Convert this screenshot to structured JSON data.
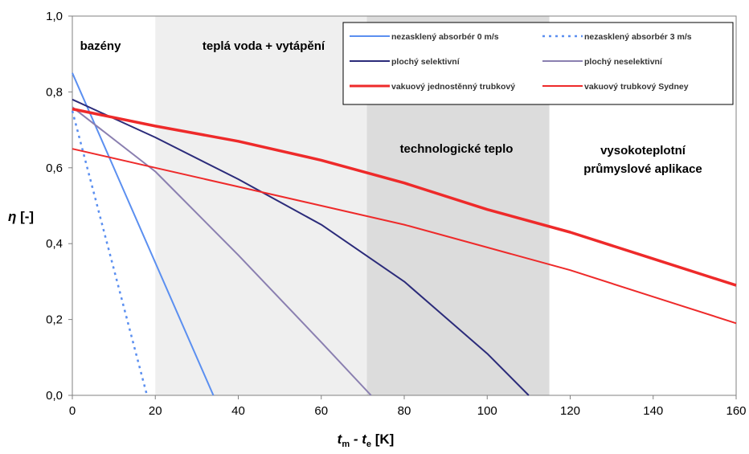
{
  "chart_data": {
    "type": "line",
    "xlabel_main": "t",
    "xlabel_sub1": "m",
    "xlabel_mid": " - t",
    "xlabel_sub2": "e",
    "xlabel_unit": " [K]",
    "ylabel_sym": "η",
    "ylabel_unit": " [-]",
    "xlim": [
      0,
      160
    ],
    "ylim": [
      0,
      1
    ],
    "x_ticks": [
      0,
      20,
      40,
      60,
      80,
      100,
      120,
      140,
      160
    ],
    "y_ticks": [
      "0,0",
      "0,2",
      "0,4",
      "0,6",
      "0,8",
      "1,0"
    ],
    "y_tick_values": [
      0,
      0.2,
      0.4,
      0.6,
      0.8,
      1.0
    ],
    "grid": false,
    "legend_position": "top-right",
    "regions": [
      {
        "label": "bazény",
        "x_from": 0,
        "x_to": 20,
        "shade": "#ffffff"
      },
      {
        "label": "teplá voda + vytápění",
        "x_from": 20,
        "x_to": 71,
        "shade": "#efefef"
      },
      {
        "label": "technologické teplo",
        "x_from": 71,
        "x_to": 115,
        "shade": "#dcdcdc"
      },
      {
        "label": "vysokoteplotní průmyslové aplikace",
        "label_line1": "vysokoteplotní",
        "label_line2": "průmyslové aplikace",
        "x_from": 115,
        "x_to": 160,
        "shade": "#ffffff"
      }
    ],
    "series": [
      {
        "name": "nezasklený absorbér 0 m/s",
        "color": "#5b8ff0",
        "dash": "none",
        "width": 2,
        "x": [
          0,
          34
        ],
        "y": [
          0.85,
          0.0
        ]
      },
      {
        "name": "nezasklený absorbér 3 m/s",
        "color": "#5b8ff0",
        "dash": "dotted",
        "width": 2.5,
        "x": [
          0,
          18
        ],
        "y": [
          0.75,
          0.0
        ]
      },
      {
        "name": "plochý selektivní",
        "color": "#2b2b7a",
        "dash": "none",
        "width": 2,
        "x": [
          0,
          20,
          40,
          60,
          80,
          100,
          110
        ],
        "y": [
          0.78,
          0.68,
          0.57,
          0.45,
          0.3,
          0.11,
          0.0
        ]
      },
      {
        "name": "plochý neselektivní",
        "color": "#8a7fb0",
        "dash": "none",
        "width": 2,
        "x": [
          0,
          20,
          40,
          60,
          72
        ],
        "y": [
          0.76,
          0.59,
          0.37,
          0.14,
          0.0
        ]
      },
      {
        "name": "vakuový jednostěnný trubkový",
        "color": "#ee2a2a",
        "dash": "none",
        "width": 3.5,
        "x": [
          0,
          20,
          40,
          60,
          80,
          100,
          120,
          140,
          160
        ],
        "y": [
          0.755,
          0.71,
          0.67,
          0.62,
          0.56,
          0.49,
          0.43,
          0.36,
          0.29
        ]
      },
      {
        "name": "vakuový trubkový Sydney",
        "color": "#ee2a2a",
        "dash": "none",
        "width": 2,
        "x": [
          0,
          20,
          40,
          60,
          80,
          100,
          120,
          140,
          160
        ],
        "y": [
          0.65,
          0.6,
          0.55,
          0.5,
          0.45,
          0.39,
          0.33,
          0.26,
          0.19
        ]
      }
    ]
  }
}
